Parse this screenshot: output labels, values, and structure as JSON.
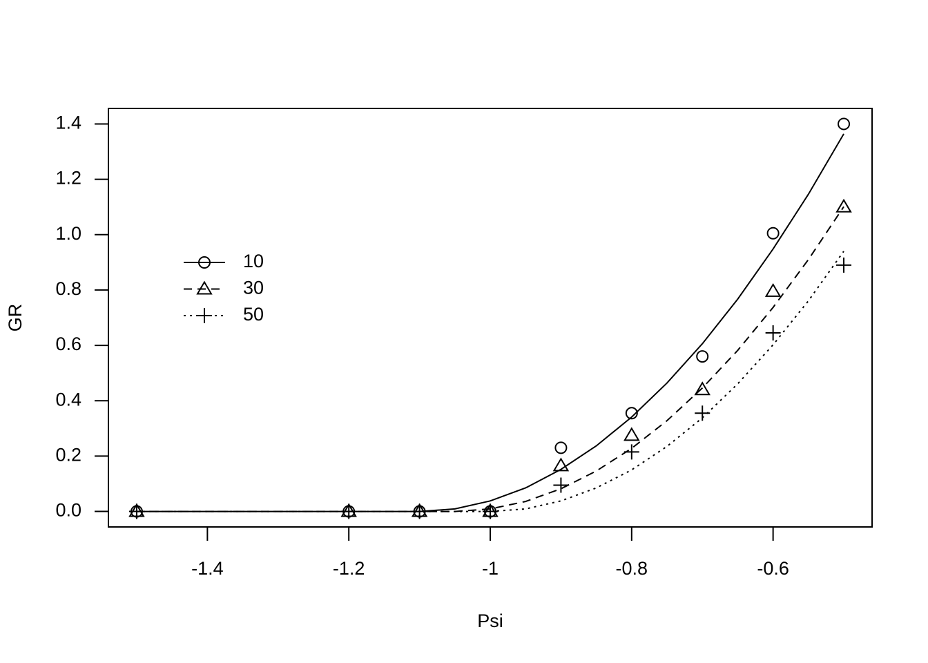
{
  "chart_data": {
    "type": "scatter",
    "xlabel": "Psi",
    "ylabel": "GR",
    "x": [
      -1.5,
      -1.2,
      -1.1,
      -1.0,
      -0.9,
      -0.8,
      -0.7,
      -0.6,
      -0.5
    ],
    "curve_x": [
      -1.5,
      -1.45,
      -1.4,
      -1.35,
      -1.3,
      -1.25,
      -1.2,
      -1.15,
      -1.1,
      -1.05,
      -1.0,
      -0.95,
      -0.9,
      -0.85,
      -0.8,
      -0.75,
      -0.7,
      -0.65,
      -0.6,
      -0.55,
      -0.5
    ],
    "series": [
      {
        "name": "10",
        "color": "#000000",
        "marker": "circle",
        "line_style": "solid",
        "values": [
          0,
          0,
          0,
          0,
          0.23,
          0.355,
          0.56,
          1.005,
          1.4
        ],
        "curve": [
          0,
          0,
          0,
          0,
          0,
          0,
          0,
          0,
          0,
          0.009,
          0.038,
          0.085,
          0.152,
          0.237,
          0.341,
          0.464,
          0.606,
          0.767,
          0.948,
          1.146,
          1.364
        ]
      },
      {
        "name": "30",
        "color": "#000000",
        "marker": "triangle",
        "line_style": "dashed",
        "values": [
          0,
          0,
          0,
          0,
          0.165,
          0.275,
          0.44,
          0.795,
          1.1
        ],
        "curve": [
          0,
          0,
          0,
          0,
          0,
          0,
          0,
          0,
          0,
          0,
          0.009,
          0.036,
          0.082,
          0.146,
          0.228,
          0.328,
          0.446,
          0.582,
          0.737,
          0.91,
          1.101
        ]
      },
      {
        "name": "50",
        "color": "#000000",
        "marker": "plus",
        "line_style": "dotted",
        "values": [
          0,
          0,
          0,
          0,
          0.095,
          0.215,
          0.355,
          0.645,
          0.89
        ],
        "curve": [
          0,
          0,
          0,
          0,
          0,
          0,
          0,
          0,
          0,
          0,
          0,
          0.009,
          0.038,
          0.085,
          0.15,
          0.235,
          0.338,
          0.461,
          0.602,
          0.761,
          0.94
        ]
      }
    ],
    "xlim": [
      -1.54,
      -0.46
    ],
    "ylim": [
      -0.056,
      1.456
    ],
    "xticks": [
      -1.4,
      -1.2,
      -1,
      -0.8,
      -0.6
    ],
    "yticks": [
      {
        "value": 0,
        "label": "0.0"
      },
      0.2,
      0.4,
      0.6,
      0.8,
      {
        "value": 1,
        "label": "1.0"
      },
      1.2,
      1.4
    ],
    "legend": "left"
  }
}
